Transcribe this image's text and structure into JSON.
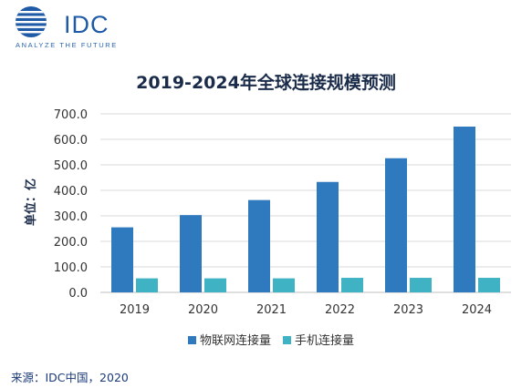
{
  "brand": {
    "name": "IDC",
    "tagline": "ANALYZE THE FUTURE"
  },
  "source": "来源：IDC中国，2020",
  "colors": {
    "iot": "#2f79bf",
    "mobile": "#3fb3c4",
    "brand": "#1f5aa6"
  },
  "chart_data": {
    "type": "bar",
    "title": "2019-2024年全球连接规模预测",
    "ylabel": "单位：亿",
    "xlabel": "",
    "categories": [
      "2019",
      "2020",
      "2021",
      "2022",
      "2023",
      "2024"
    ],
    "series": [
      {
        "name": "物联网连接量",
        "values": [
          255,
          303,
          362,
          433,
          526,
          650
        ]
      },
      {
        "name": "手机连接量",
        "values": [
          55,
          55,
          55,
          57,
          57,
          57
        ]
      }
    ],
    "ylim": [
      0,
      700
    ],
    "yticks": [
      "0.0",
      "100.0",
      "200.0",
      "300.0",
      "400.0",
      "500.0",
      "600.0",
      "700.0"
    ],
    "grid": true,
    "legend": "bottom-center"
  }
}
